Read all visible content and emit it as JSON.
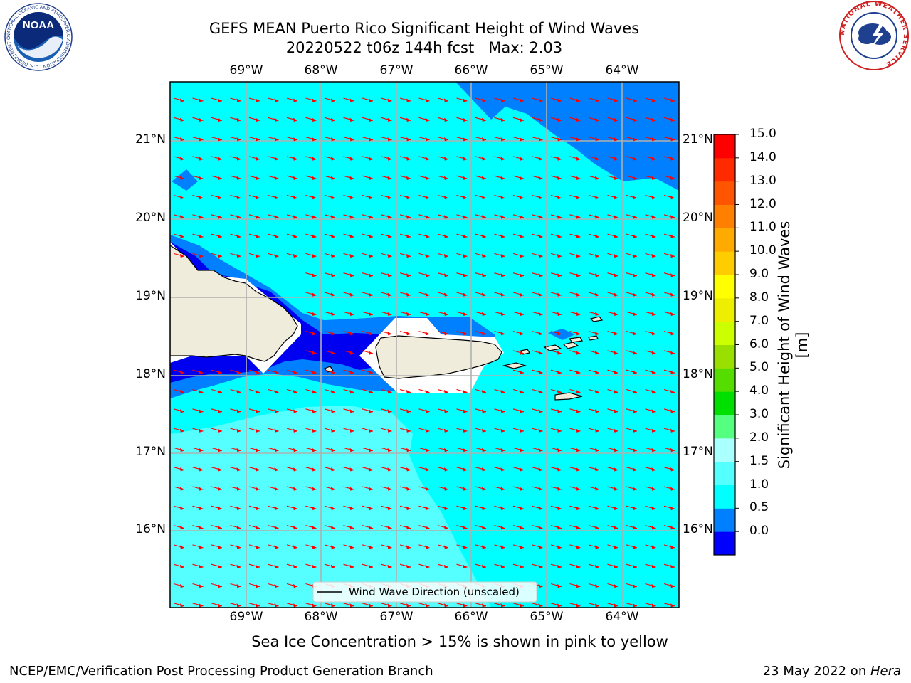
{
  "title": {
    "line1": "GEFS MEAN Puerto Rico Significant Height of Wind Waves",
    "line2": "20220522 t06z 144h fcst   Max: 2.03"
  },
  "logos": {
    "left": {
      "name": "NOAA",
      "text": "NOAA",
      "ring_text": "NATIONAL OCEANIC AND ATMOSPHERIC ADMINISTRATION · U.S. DEPARTMENT OF COMMERCE"
    },
    "right": {
      "name": "National Weather Service",
      "ring_text": "NATIONAL WEATHER SERVICE"
    }
  },
  "map": {
    "x_ticks": [
      "69°W",
      "68°W",
      "67°W",
      "66°W",
      "65°W",
      "64°W"
    ],
    "y_ticks": [
      "21°N",
      "20°N",
      "19°N",
      "18°N",
      "17°N",
      "16°N"
    ],
    "legend": "Wind Wave Direction (unscaled)",
    "colors": {
      "ocean_1_1_5": "#00ffff",
      "ocean_0_5_1": "#0080ff",
      "ocean_0_0_5": "#0000f0",
      "ocean_1_5_2": "#55ffff",
      "land": "#efecdc",
      "arrow": "#ff0000",
      "grid": "#b0b0b0"
    }
  },
  "colorbar": {
    "label": "Significant Height of Wind Waves [m]",
    "ticks": [
      "15.0",
      "14.0",
      "13.0",
      "12.0",
      "11.0",
      "10.0",
      "9.0",
      "8.0",
      "7.0",
      "6.0",
      "5.0",
      "4.0",
      "3.0",
      "2.0",
      "1.5",
      "1.0",
      "0.5",
      "0.0"
    ],
    "colors_bottom_to_top": [
      "#0000ff",
      "#0080ff",
      "#00ffff",
      "#55ffff",
      "#aaffff",
      "#55ff80",
      "#00e000",
      "#55dd00",
      "#99e000",
      "#ccff00",
      "#eeee00",
      "#ffff00",
      "#ffcc00",
      "#ffaa00",
      "#ff8000",
      "#ff5500",
      "#ff2a00",
      "#ff0000"
    ]
  },
  "note": "Sea Ice Concentration > 15% is shown in pink to yellow",
  "footer": {
    "left": "NCEP/EMC/Verification Post Processing Product Generation Branch",
    "right_prefix": "23 May 2022 on ",
    "right_host": "Hera"
  }
}
